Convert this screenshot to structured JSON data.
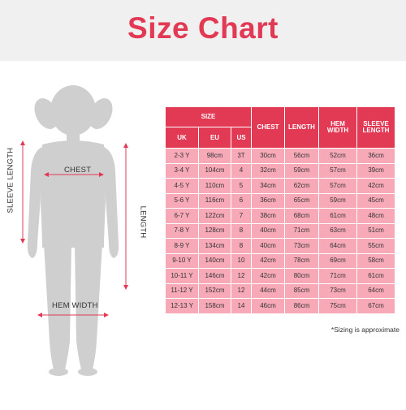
{
  "title": "Size Chart",
  "figure": {
    "labels": {
      "sleeve_length": "SLEEVE LENGTH",
      "chest": "CHEST",
      "length": "LENGTH",
      "hem_width": "HEM WIDTH"
    },
    "colors": {
      "silhouette": "#cfcfcf",
      "measure_line": "#e23a55"
    }
  },
  "table": {
    "group_header": "SIZE",
    "sub_headers": [
      "UK",
      "EU",
      "US"
    ],
    "headers": [
      "CHEST",
      "LENGTH",
      "HEM WIDTH",
      "SLEEVE LENGTH"
    ],
    "rows": [
      [
        "2-3 Y",
        "98cm",
        "3T",
        "30cm",
        "56cm",
        "52cm",
        "36cm"
      ],
      [
        "3-4 Y",
        "104cm",
        "4",
        "32cm",
        "59cm",
        "57cm",
        "39cm"
      ],
      [
        "4-5 Y",
        "110cm",
        "5",
        "34cm",
        "62cm",
        "57cm",
        "42cm"
      ],
      [
        "5-6 Y",
        "116cm",
        "6",
        "36cm",
        "65cm",
        "59cm",
        "45cm"
      ],
      [
        "6-7 Y",
        "122cm",
        "7",
        "38cm",
        "68cm",
        "61cm",
        "48cm"
      ],
      [
        "7-8 Y",
        "128cm",
        "8",
        "40cm",
        "71cm",
        "63cm",
        "51cm"
      ],
      [
        "8-9 Y",
        "134cm",
        "8",
        "40cm",
        "73cm",
        "64cm",
        "55cm"
      ],
      [
        "9-10 Y",
        "140cm",
        "10",
        "42cm",
        "78cm",
        "69cm",
        "58cm"
      ],
      [
        "10-11 Y",
        "146cm",
        "12",
        "42cm",
        "80cm",
        "71cm",
        "61cm"
      ],
      [
        "11-12 Y",
        "152cm",
        "12",
        "44cm",
        "85cm",
        "73cm",
        "64cm"
      ],
      [
        "12-13 Y",
        "158cm",
        "14",
        "46cm",
        "86cm",
        "75cm",
        "67cm"
      ]
    ],
    "colors": {
      "header_bg": "#e23a55",
      "cell_bg": "#f7a9b8"
    }
  },
  "note": "*Sizing is approximate"
}
